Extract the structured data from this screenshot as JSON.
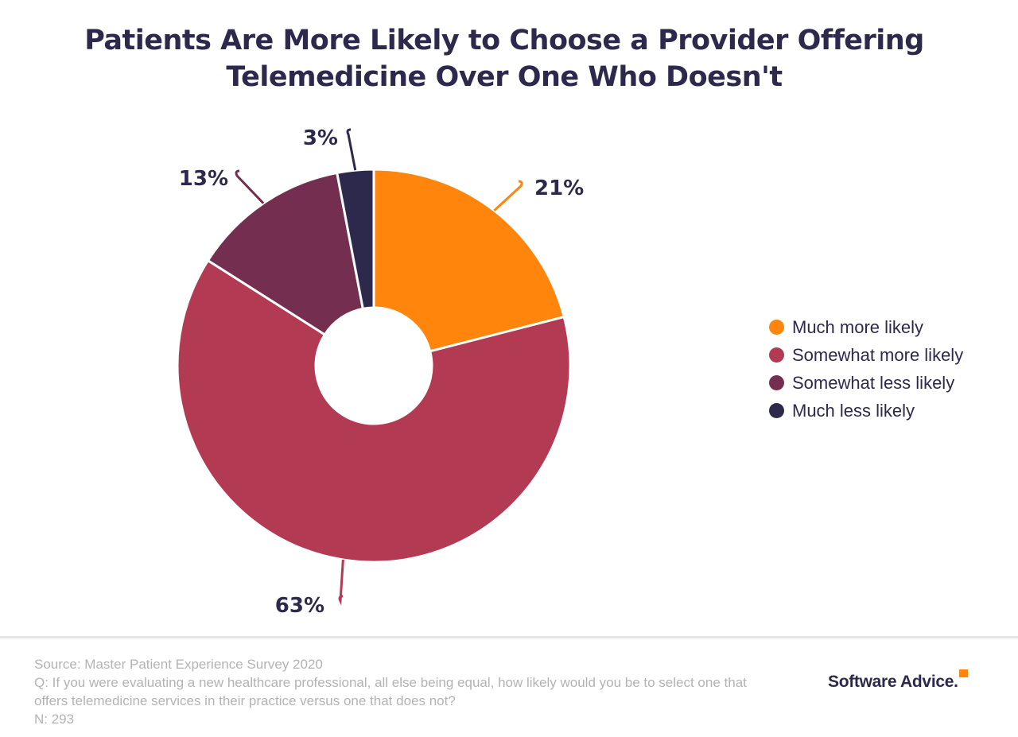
{
  "chart_data": {
    "type": "pie",
    "donut": true,
    "title": "Patients Are More Likely to Choose a Provider Offering Telemedicine Over One Who Doesn't",
    "categories": [
      "Much more likely",
      "Somewhat more likely",
      "Somewhat less likely",
      "Much less likely"
    ],
    "values": [
      21,
      63,
      13,
      3
    ],
    "labels": [
      "21%",
      "63%",
      "13%",
      "3%"
    ],
    "colors": [
      "#FF850D",
      "#B23A52",
      "#742E4F",
      "#2C294D"
    ],
    "legend_position": "right"
  },
  "footer": {
    "source": "Source: Master Patient Experience Survey 2020",
    "question": "Q: If you were evaluating a new healthcare professional, all else being equal, how likely would you be to select one that offers telemedicine services in their practice versus one that does not?",
    "n": "N: 293"
  },
  "logo": "Software Advice."
}
